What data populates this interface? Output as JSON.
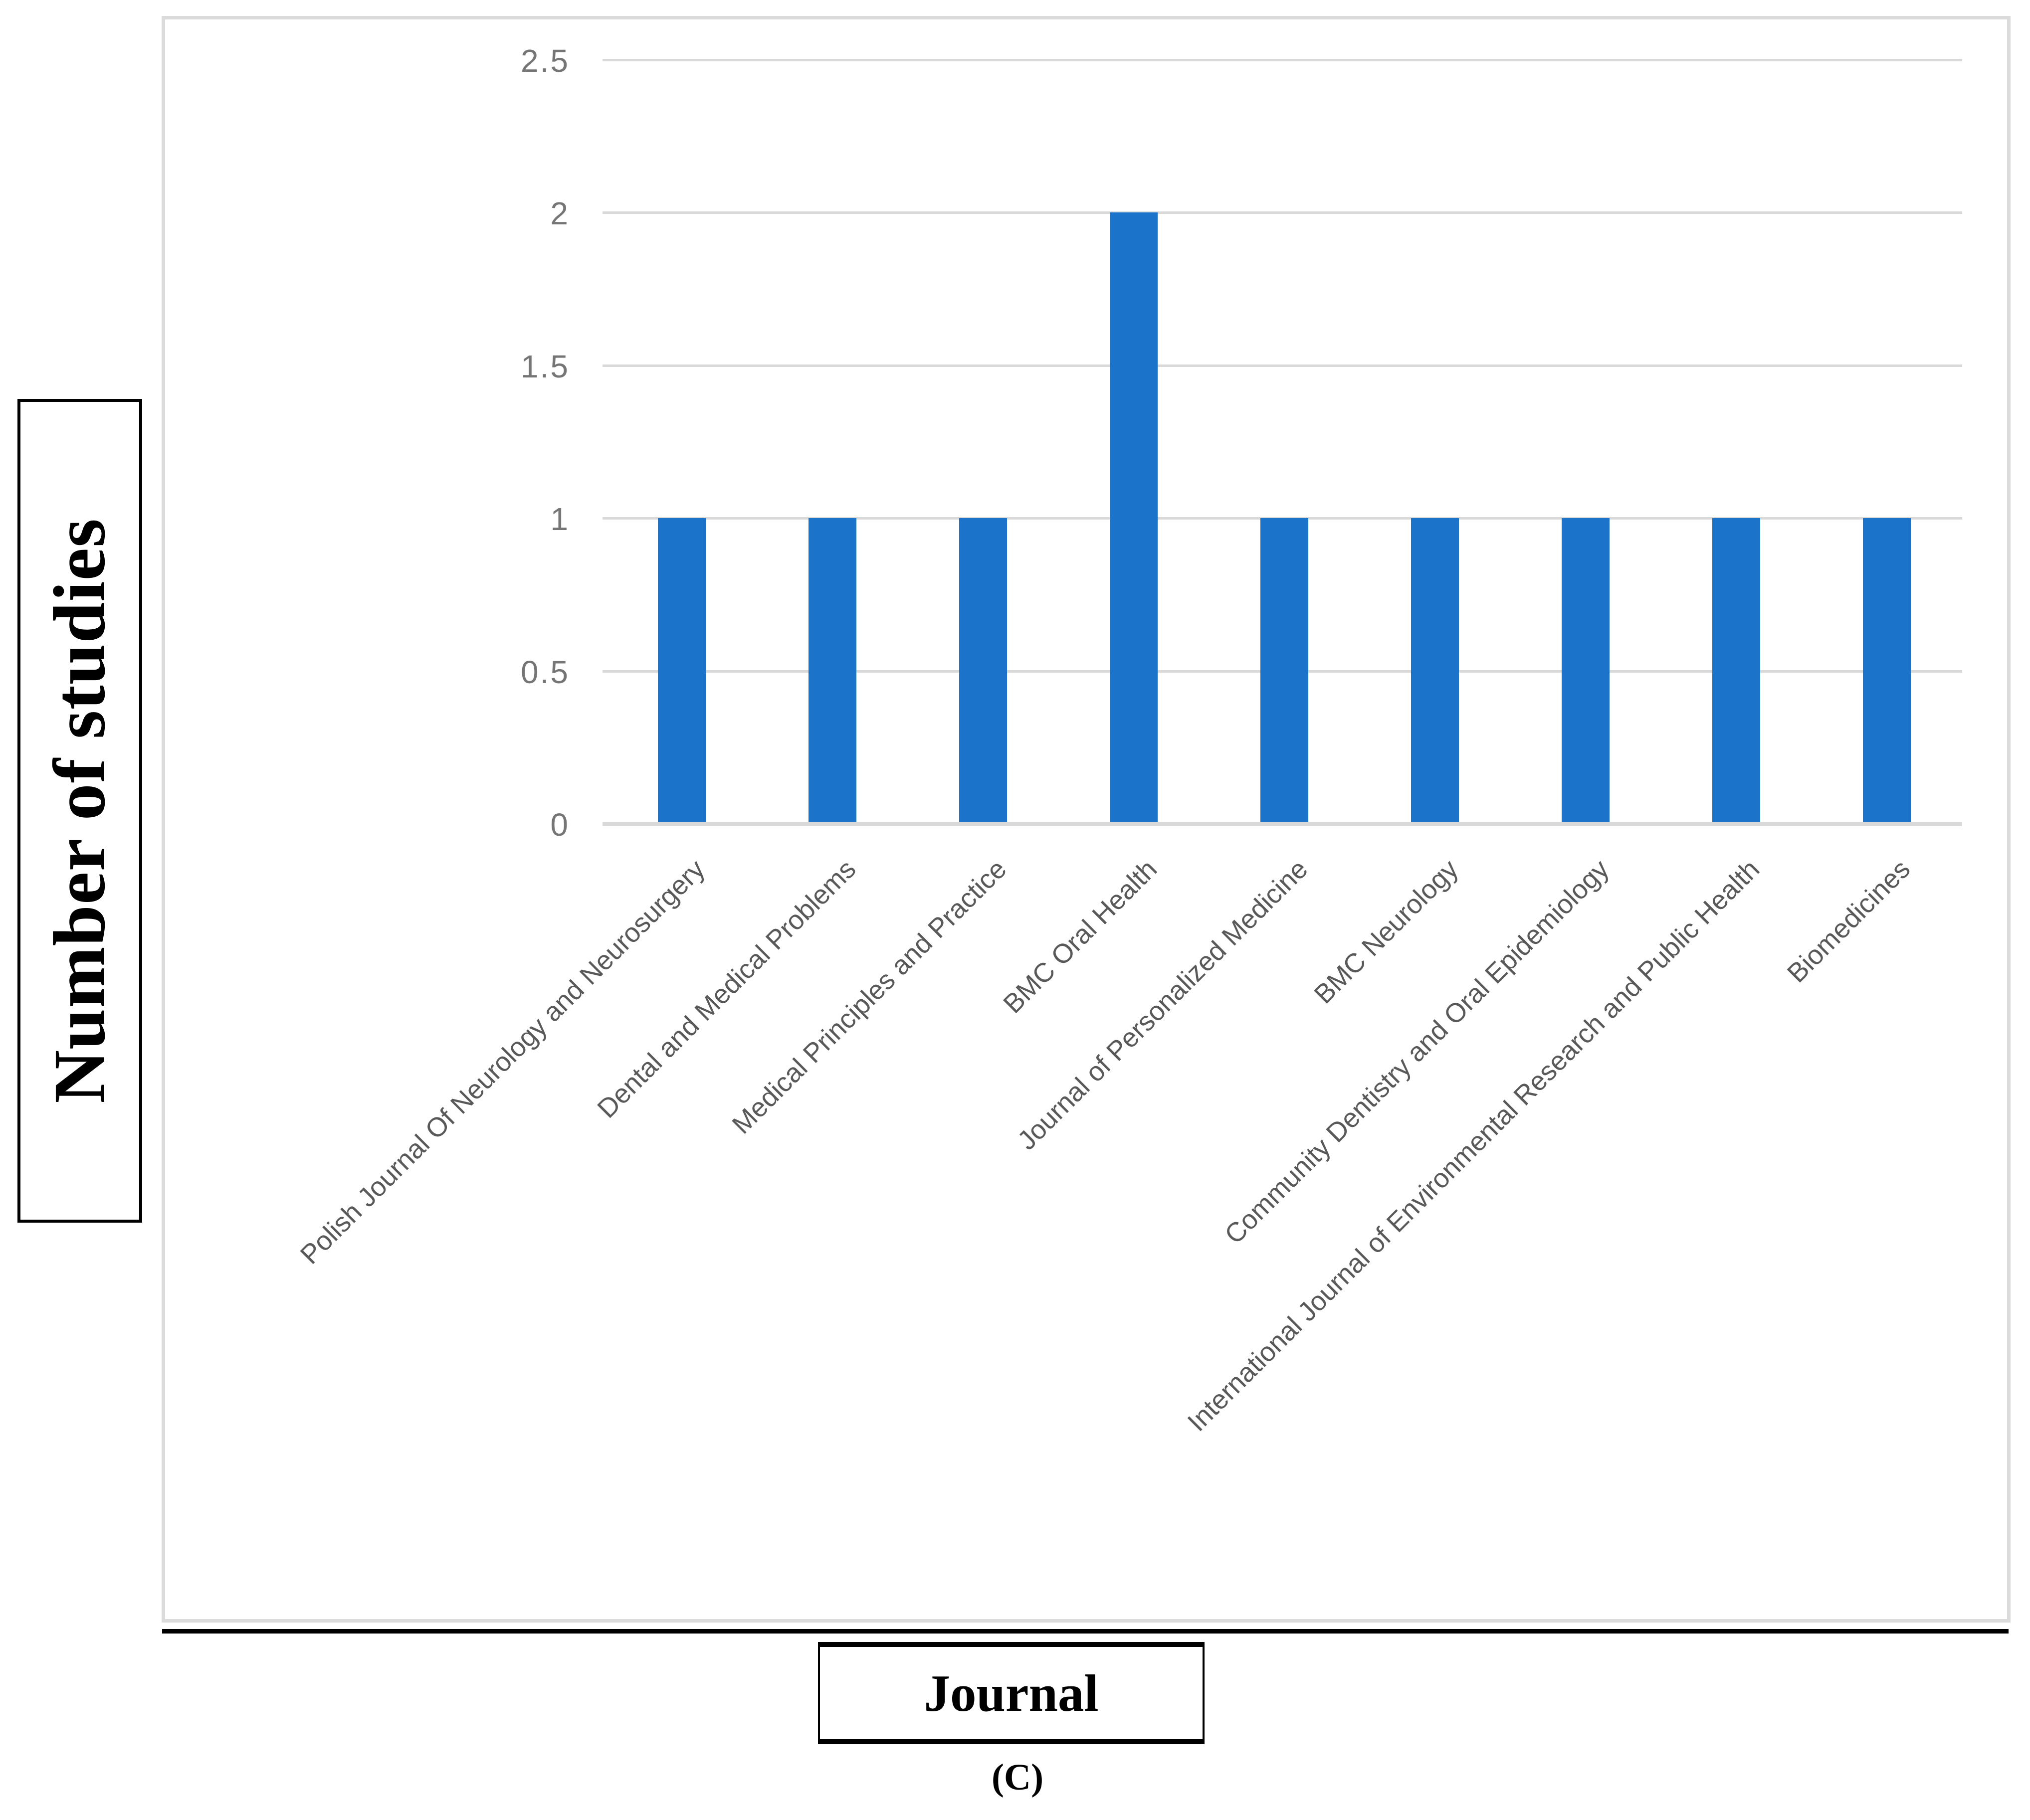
{
  "chart": {
    "y_axis_title": "Number of studies",
    "x_axis_title": "Journal",
    "caption": "(C)"
  },
  "chart_data": {
    "type": "bar",
    "title": "",
    "categories": [
      "Polish Journal Of Neurology and Neurosurgery",
      "Dental and Medical Problems",
      "Medical Principles and Practice",
      "BMC Oral Health",
      "Journal of Personalized Medicine",
      "BMC Neurology",
      "Community Dentistry and Oral Epidemiology",
      "International Journal of Environmental Research and Public Health",
      "Biomedicines"
    ],
    "values": [
      1,
      1,
      1,
      2,
      1,
      1,
      1,
      1,
      1
    ],
    "xlabel": "Journal",
    "ylabel": "Number of studies",
    "ylim": [
      0,
      2.5
    ],
    "yticks": [
      0,
      0.5,
      1,
      1.5,
      2,
      2.5
    ],
    "grid": true,
    "legend_position": "none",
    "bar_color": "#1B74CA",
    "gridline_color": "#D9D9D9",
    "border_color": "#DBDBDB",
    "tick_label_color": "#757575",
    "category_label_color": "#595959"
  }
}
